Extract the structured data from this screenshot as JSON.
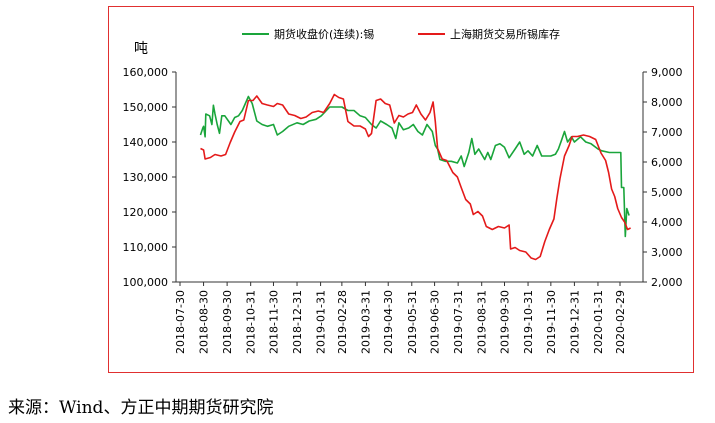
{
  "chart_data": {
    "type": "line",
    "unit_label": "吨",
    "y_left": {
      "ticks": [
        "100,000",
        "110,000",
        "120,000",
        "130,000",
        "140,000",
        "150,000",
        "160,000"
      ],
      "ylim": [
        100000,
        160000
      ]
    },
    "y_right": {
      "ticks": [
        "2,000",
        "3,000",
        "4,000",
        "5,000",
        "6,000",
        "7,000",
        "8,000",
        "9,000"
      ],
      "ylim": [
        2000,
        9000
      ]
    },
    "x_ticks": [
      "2018-07-30",
      "2018-08-30",
      "2018-09-30",
      "2018-10-31",
      "2018-11-30",
      "2018-12-31",
      "2019-01-31",
      "2019-02-28",
      "2019-03-31",
      "2019-04-30",
      "2019-05-31",
      "2019-06-30",
      "2019-07-31",
      "2019-08-31",
      "2019-09-30",
      "2019-10-31",
      "2019-11-30",
      "2019-12-31",
      "2020-01-31",
      "2020-02-29"
    ],
    "legend_position": "top",
    "series": [
      {
        "name": "期货收盘价(连续):锡",
        "axis": "left",
        "color": "#1aa53b",
        "points": [
          [
            "2018-08-26",
            142000
          ],
          [
            "2018-08-29",
            144000
          ],
          [
            "2018-08-30",
            144500
          ],
          [
            "2018-09-01",
            141500
          ],
          [
            "2018-09-02",
            148000
          ],
          [
            "2018-09-07",
            147500
          ],
          [
            "2018-09-10",
            145000
          ],
          [
            "2018-09-12",
            150500
          ],
          [
            "2018-09-14",
            148000
          ],
          [
            "2018-09-17",
            145000
          ],
          [
            "2018-09-20",
            142500
          ],
          [
            "2018-09-23",
            147500
          ],
          [
            "2018-09-27",
            147500
          ],
          [
            "2018-10-05",
            145000
          ],
          [
            "2018-10-10",
            147000
          ],
          [
            "2018-10-15",
            147500
          ],
          [
            "2018-10-20",
            149000
          ],
          [
            "2018-10-28",
            153000
          ],
          [
            "2018-11-02",
            151000
          ],
          [
            "2018-11-08",
            146000
          ],
          [
            "2018-11-15",
            145000
          ],
          [
            "2018-11-22",
            144500
          ],
          [
            "2018-11-30",
            145000
          ],
          [
            "2018-12-05",
            142000
          ],
          [
            "2018-12-12",
            143000
          ],
          [
            "2018-12-20",
            144500
          ],
          [
            "2018-12-31",
            145500
          ],
          [
            "2019-01-08",
            145000
          ],
          [
            "2019-01-16",
            146000
          ],
          [
            "2019-01-25",
            146500
          ],
          [
            "2019-02-01",
            147500
          ],
          [
            "2019-02-12",
            150000
          ],
          [
            "2019-02-28",
            150000
          ],
          [
            "2019-03-08",
            149000
          ],
          [
            "2019-03-16",
            149000
          ],
          [
            "2019-03-24",
            147500
          ],
          [
            "2019-03-31",
            147000
          ],
          [
            "2019-04-08",
            145000
          ],
          [
            "2019-04-14",
            144000
          ],
          [
            "2019-04-20",
            146000
          ],
          [
            "2019-04-28",
            145000
          ],
          [
            "2019-05-05",
            144000
          ],
          [
            "2019-05-10",
            141000
          ],
          [
            "2019-05-14",
            145500
          ],
          [
            "2019-05-20",
            143500
          ],
          [
            "2019-05-27",
            144000
          ],
          [
            "2019-06-02",
            145000
          ],
          [
            "2019-06-08",
            143000
          ],
          [
            "2019-06-14",
            142000
          ],
          [
            "2019-06-20",
            145000
          ],
          [
            "2019-06-27",
            143000
          ],
          [
            "2019-07-01",
            139000
          ],
          [
            "2019-07-04",
            138000
          ],
          [
            "2019-07-07",
            135000
          ],
          [
            "2019-07-14",
            134500
          ],
          [
            "2019-07-22",
            134500
          ],
          [
            "2019-07-30",
            134000
          ],
          [
            "2019-08-04",
            136000
          ],
          [
            "2019-08-08",
            133000
          ],
          [
            "2019-08-14",
            137000
          ],
          [
            "2019-08-18",
            141000
          ],
          [
            "2019-08-22",
            136500
          ],
          [
            "2019-08-27",
            138000
          ],
          [
            "2019-08-31",
            136500
          ],
          [
            "2019-09-04",
            135000
          ],
          [
            "2019-09-08",
            137000
          ],
          [
            "2019-09-12",
            135000
          ],
          [
            "2019-09-18",
            139000
          ],
          [
            "2019-09-24",
            139500
          ],
          [
            "2019-09-30",
            138500
          ],
          [
            "2019-10-06",
            135500
          ],
          [
            "2019-10-14",
            138000
          ],
          [
            "2019-10-20",
            140000
          ],
          [
            "2019-10-26",
            136500
          ],
          [
            "2019-10-31",
            137500
          ],
          [
            "2019-11-06",
            136000
          ],
          [
            "2019-11-12",
            139000
          ],
          [
            "2019-11-18",
            136000
          ],
          [
            "2019-11-24",
            136000
          ],
          [
            "2019-11-30",
            136000
          ],
          [
            "2019-12-06",
            136500
          ],
          [
            "2019-12-10",
            138000
          ],
          [
            "2019-12-14",
            140500
          ],
          [
            "2019-12-18",
            143000
          ],
          [
            "2019-12-22",
            140000
          ],
          [
            "2019-12-27",
            141500
          ],
          [
            "2019-12-31",
            140000
          ],
          [
            "2020-01-08",
            141500
          ],
          [
            "2020-01-15",
            140000
          ],
          [
            "2020-01-22",
            139500
          ],
          [
            "2020-01-31",
            138000
          ],
          [
            "2020-02-05",
            137500
          ],
          [
            "2020-02-15",
            137000
          ],
          [
            "2020-02-26",
            137000
          ],
          [
            "2020-03-01",
            137000
          ],
          [
            "2020-03-02",
            127000
          ],
          [
            "2020-03-05",
            127000
          ],
          [
            "2020-03-07",
            113000
          ],
          [
            "2020-03-09",
            121000
          ],
          [
            "2020-03-12",
            119000
          ]
        ]
      },
      {
        "name": "上海期货交易所锡库存",
        "axis": "right",
        "color": "#e41a1a",
        "points": [
          [
            "2018-08-26",
            6450
          ],
          [
            "2018-08-30",
            6400
          ],
          [
            "2018-09-01",
            6100
          ],
          [
            "2018-09-08",
            6150
          ],
          [
            "2018-09-14",
            6250
          ],
          [
            "2018-09-22",
            6200
          ],
          [
            "2018-09-28",
            6250
          ],
          [
            "2018-10-04",
            6650
          ],
          [
            "2018-10-10",
            7000
          ],
          [
            "2018-10-17",
            7350
          ],
          [
            "2018-10-22",
            7400
          ],
          [
            "2018-10-28",
            8050
          ],
          [
            "2018-11-03",
            8050
          ],
          [
            "2018-11-08",
            8200
          ],
          [
            "2018-11-15",
            7950
          ],
          [
            "2018-11-22",
            7900
          ],
          [
            "2018-11-30",
            7850
          ],
          [
            "2018-12-05",
            7950
          ],
          [
            "2018-12-12",
            7900
          ],
          [
            "2018-12-20",
            7600
          ],
          [
            "2018-12-28",
            7550
          ],
          [
            "2019-01-05",
            7450
          ],
          [
            "2019-01-12",
            7500
          ],
          [
            "2019-01-20",
            7650
          ],
          [
            "2019-01-28",
            7700
          ],
          [
            "2019-02-04",
            7650
          ],
          [
            "2019-02-12",
            7950
          ],
          [
            "2019-02-18",
            8250
          ],
          [
            "2019-02-24",
            8150
          ],
          [
            "2019-03-02",
            8100
          ],
          [
            "2019-03-08",
            7350
          ],
          [
            "2019-03-16",
            7200
          ],
          [
            "2019-03-24",
            7200
          ],
          [
            "2019-03-31",
            7100
          ],
          [
            "2019-04-04",
            6850
          ],
          [
            "2019-04-08",
            6950
          ],
          [
            "2019-04-14",
            8050
          ],
          [
            "2019-04-20",
            8100
          ],
          [
            "2019-04-26",
            7950
          ],
          [
            "2019-05-02",
            7900
          ],
          [
            "2019-05-08",
            7300
          ],
          [
            "2019-05-14",
            7550
          ],
          [
            "2019-05-20",
            7500
          ],
          [
            "2019-05-26",
            7600
          ],
          [
            "2019-06-01",
            7650
          ],
          [
            "2019-06-06",
            7900
          ],
          [
            "2019-06-12",
            7600
          ],
          [
            "2019-06-18",
            7400
          ],
          [
            "2019-06-24",
            7650
          ],
          [
            "2019-06-28",
            8000
          ],
          [
            "2019-07-01",
            7350
          ],
          [
            "2019-07-04",
            6450
          ],
          [
            "2019-07-10",
            6100
          ],
          [
            "2019-07-16",
            6050
          ],
          [
            "2019-07-24",
            5650
          ],
          [
            "2019-07-30",
            5500
          ],
          [
            "2019-08-04",
            5150
          ],
          [
            "2019-08-10",
            4750
          ],
          [
            "2019-08-16",
            4600
          ],
          [
            "2019-08-20",
            4250
          ],
          [
            "2019-08-26",
            4350
          ],
          [
            "2019-09-01",
            4200
          ],
          [
            "2019-09-06",
            3850
          ],
          [
            "2019-09-14",
            3750
          ],
          [
            "2019-09-22",
            3850
          ],
          [
            "2019-09-30",
            3800
          ],
          [
            "2019-10-06",
            3900
          ],
          [
            "2019-10-08",
            3100
          ],
          [
            "2019-10-14",
            3150
          ],
          [
            "2019-10-20",
            3050
          ],
          [
            "2019-10-28",
            3000
          ],
          [
            "2019-11-04",
            2800
          ],
          [
            "2019-11-10",
            2750
          ],
          [
            "2019-11-16",
            2850
          ],
          [
            "2019-11-22",
            3350
          ],
          [
            "2019-11-28",
            3750
          ],
          [
            "2019-12-04",
            4100
          ],
          [
            "2019-12-08",
            4800
          ],
          [
            "2019-12-12",
            5450
          ],
          [
            "2019-12-18",
            6200
          ],
          [
            "2019-12-24",
            6550
          ],
          [
            "2019-12-28",
            6850
          ],
          [
            "2020-01-04",
            6850
          ],
          [
            "2020-01-12",
            6900
          ],
          [
            "2020-01-20",
            6850
          ],
          [
            "2020-01-28",
            6750
          ],
          [
            "2020-02-04",
            6300
          ],
          [
            "2020-02-10",
            6050
          ],
          [
            "2020-02-14",
            5650
          ],
          [
            "2020-02-18",
            5100
          ],
          [
            "2020-02-22",
            4850
          ],
          [
            "2020-02-26",
            4450
          ],
          [
            "2020-03-02",
            4150
          ],
          [
            "2020-03-06",
            4000
          ],
          [
            "2020-03-10",
            3750
          ],
          [
            "2020-03-14",
            3800
          ]
        ]
      }
    ]
  },
  "footer": {
    "source": "来源：Wind、方正中期期货研究院"
  }
}
